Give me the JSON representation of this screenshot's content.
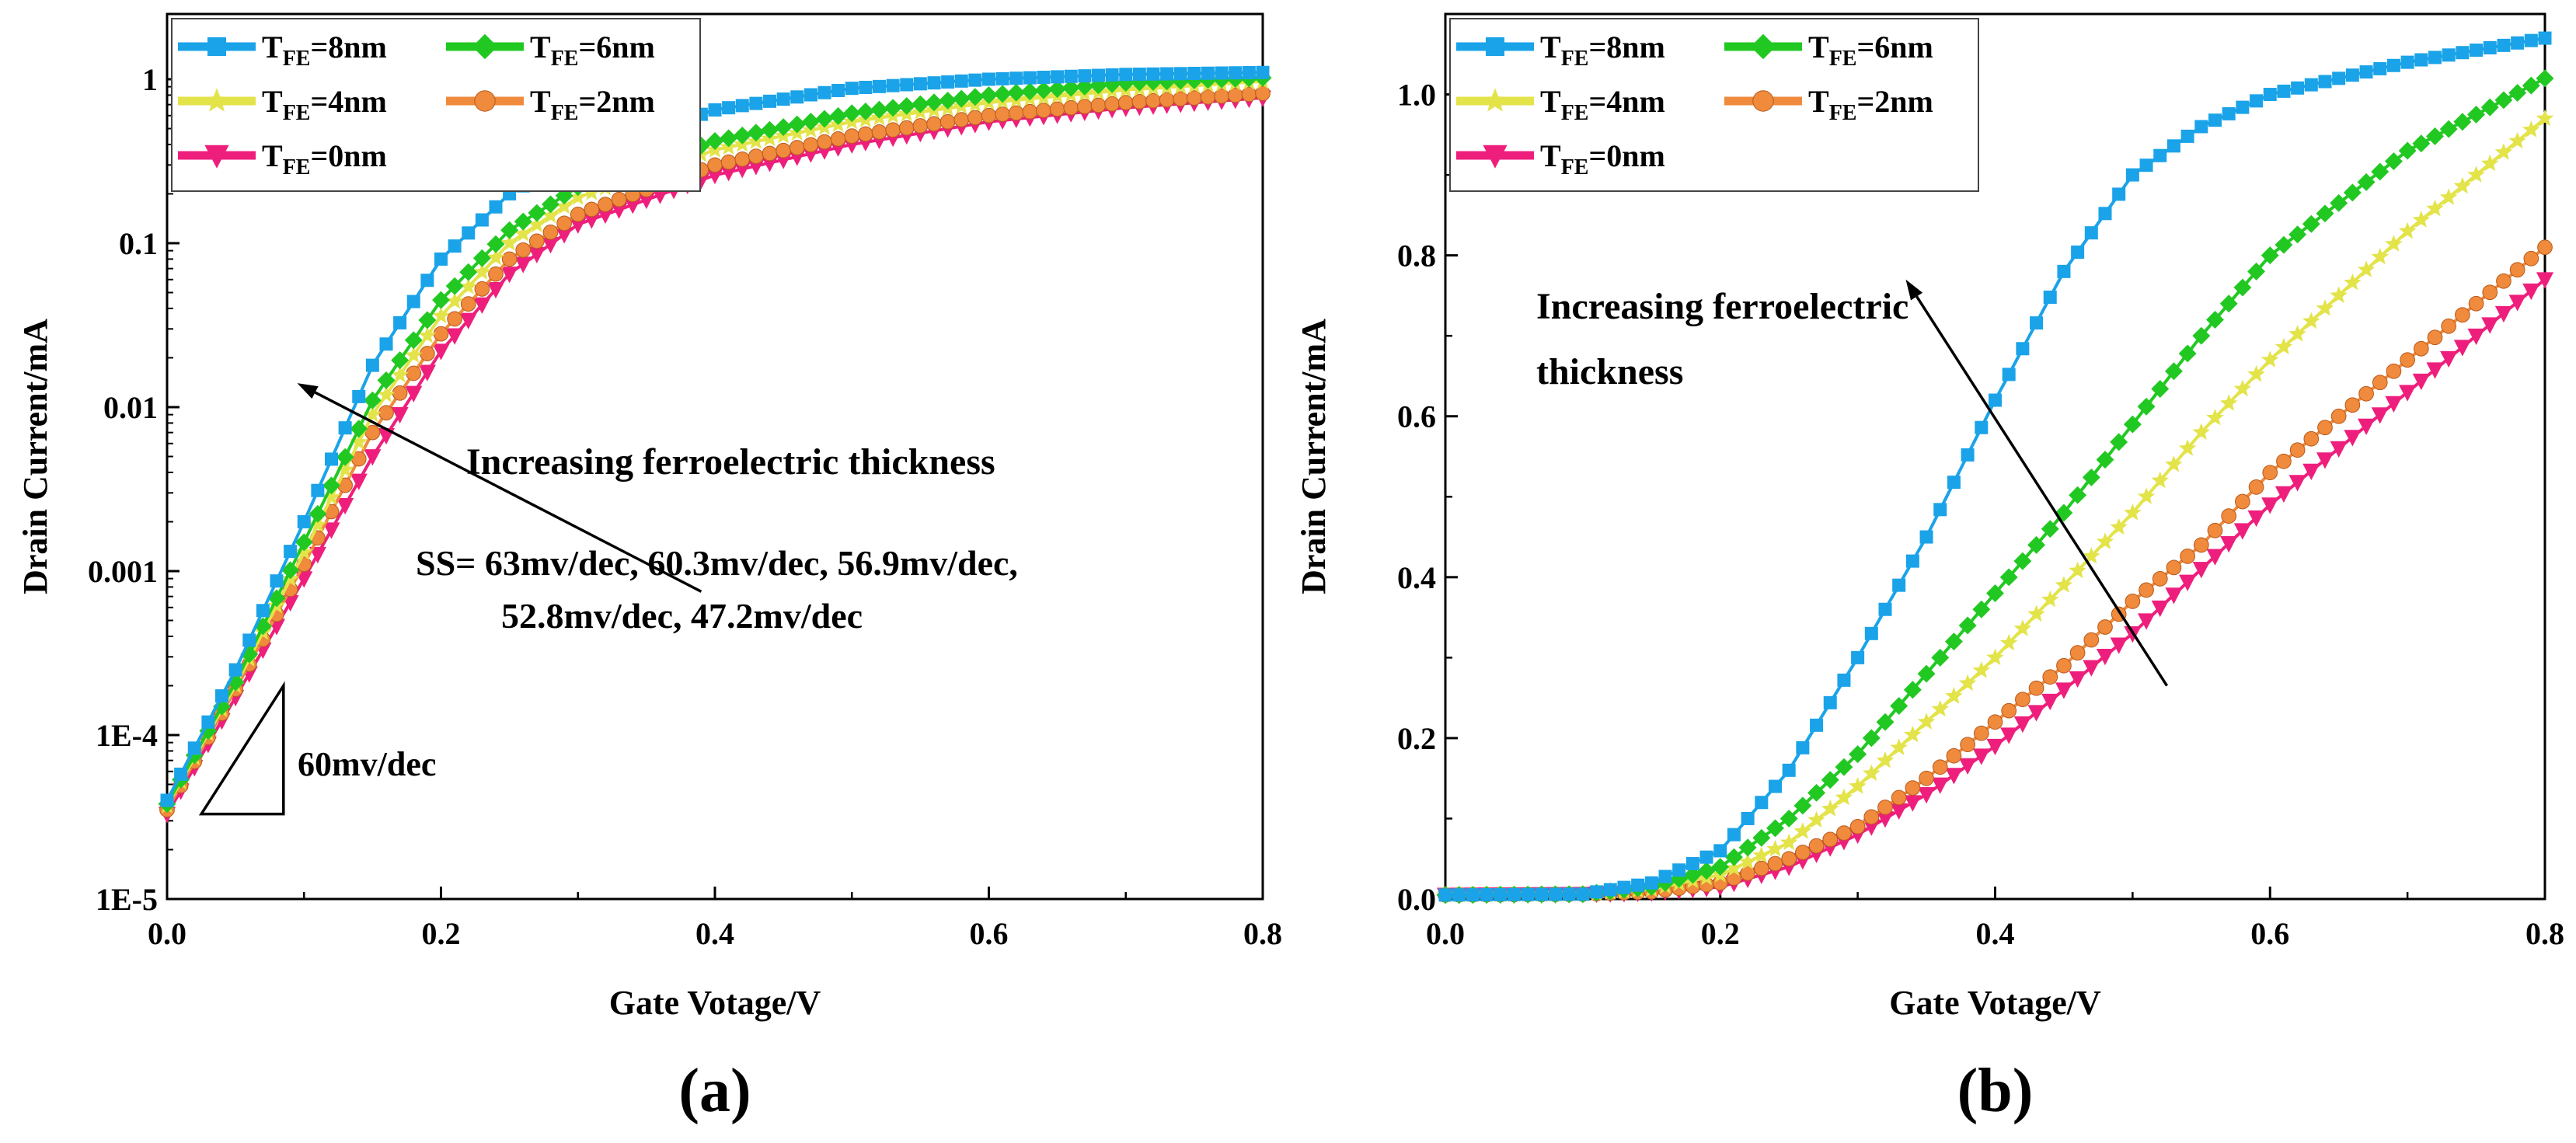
{
  "series_styles": [
    {
      "key": "t8",
      "name": "T_FE=8nm",
      "base": "T",
      "sub": "FE",
      "rest": "=8nm",
      "color": "#1aa3e8",
      "marker": "square"
    },
    {
      "key": "t6",
      "name": "T_FE=6nm",
      "base": "T",
      "sub": "FE",
      "rest": "=6nm",
      "color": "#22c822",
      "marker": "diamond"
    },
    {
      "key": "t4",
      "name": "T_FE=4nm",
      "base": "T",
      "sub": "FE",
      "rest": "=4nm",
      "color": "#e3e34a",
      "marker": "star"
    },
    {
      "key": "t2",
      "name": "T_FE=2nm",
      "base": "T",
      "sub": "FE",
      "rest": "=2nm",
      "color": "#f08a3c",
      "marker": "ball"
    },
    {
      "key": "t0",
      "name": "T_FE=0nm",
      "base": "T",
      "sub": "FE",
      "rest": "=0nm",
      "color": "#ee1f7c",
      "marker": "triangle-down"
    }
  ],
  "chart_data": [
    {
      "id": "a",
      "panel_label": "(a)",
      "type": "line",
      "yscale": "log",
      "xlabel": "Gate Votage/V",
      "ylabel": "Drain Current/mA",
      "xlim": [
        0,
        0.8
      ],
      "ylim": [
        1e-05,
        2.5
      ],
      "xticks": [
        0.0,
        0.2,
        0.4,
        0.6,
        0.8
      ],
      "xtick_labels": [
        "0.0",
        "0.2",
        "0.4",
        "0.6",
        "0.8"
      ],
      "yticks": [
        1e-05,
        0.0001,
        0.001,
        0.01,
        0.1,
        1
      ],
      "ytick_labels": [
        "1E-5",
        "1E-4",
        "0.001",
        "0.01",
        "0.1",
        "1"
      ],
      "legend": "top-left",
      "series": [
        {
          "key": "t8",
          "x": [
            0.0,
            0.05,
            0.1,
            0.15,
            0.2,
            0.25,
            0.3,
            0.4,
            0.5,
            0.6,
            0.7,
            0.8
          ],
          "values": [
            4e-05,
            0.00025,
            0.002,
            0.018,
            0.08,
            0.2,
            0.35,
            0.65,
            0.88,
            1.0,
            1.07,
            1.1
          ]
        },
        {
          "key": "t6",
          "x": [
            0.0,
            0.05,
            0.1,
            0.15,
            0.2,
            0.25,
            0.3,
            0.4,
            0.5,
            0.6,
            0.7,
            0.8
          ],
          "values": [
            3.8e-05,
            0.00021,
            0.0015,
            0.011,
            0.045,
            0.12,
            0.22,
            0.42,
            0.62,
            0.8,
            0.95,
            1.02
          ]
        },
        {
          "key": "t4",
          "x": [
            0.0,
            0.05,
            0.1,
            0.15,
            0.2,
            0.25,
            0.3,
            0.4,
            0.5,
            0.6,
            0.7,
            0.8
          ],
          "values": [
            3.7e-05,
            0.0002,
            0.0013,
            0.009,
            0.036,
            0.1,
            0.19,
            0.37,
            0.55,
            0.72,
            0.86,
            0.97
          ]
        },
        {
          "key": "t2",
          "x": [
            0.0,
            0.05,
            0.1,
            0.15,
            0.2,
            0.25,
            0.3,
            0.4,
            0.5,
            0.6,
            0.7,
            0.8
          ],
          "values": [
            3.5e-05,
            0.00019,
            0.0011,
            0.007,
            0.028,
            0.08,
            0.15,
            0.3,
            0.45,
            0.6,
            0.72,
            0.82
          ]
        },
        {
          "key": "t0",
          "x": [
            0.0,
            0.05,
            0.1,
            0.15,
            0.2,
            0.25,
            0.3,
            0.4,
            0.5,
            0.6,
            0.7,
            0.8
          ],
          "values": [
            3.3e-05,
            0.00017,
            0.0009,
            0.005,
            0.022,
            0.065,
            0.13,
            0.26,
            0.4,
            0.55,
            0.67,
            0.77
          ]
        }
      ],
      "annotations": {
        "arrow_text": "Increasing ferroelectric thickness",
        "ss_line1": "SS= 63mv/dec,  60.3mv/dec,  56.9mv/dec,",
        "ss_line2": "52.8mv/dec,  47.2mv/dec",
        "slope_label": "60mv/dec",
        "arrow_from": [
          0.39,
          0.00075
        ],
        "arrow_to": [
          0.095,
          0.014
        ],
        "triangle": [
          [
            0.025,
            3.3e-05
          ],
          [
            0.085,
            3.3e-05
          ],
          [
            0.085,
            0.0002
          ]
        ]
      }
    },
    {
      "id": "b",
      "panel_label": "(b)",
      "type": "line",
      "yscale": "linear",
      "xlabel": "Gate Votage/V",
      "ylabel": "Drain Current/mA",
      "xlim": [
        0,
        0.8
      ],
      "ylim": [
        0,
        1.1
      ],
      "xticks": [
        0.0,
        0.2,
        0.4,
        0.6,
        0.8
      ],
      "xtick_labels": [
        "0.0",
        "0.2",
        "0.4",
        "0.6",
        "0.8"
      ],
      "yticks": [
        0.0,
        0.2,
        0.4,
        0.6,
        0.8,
        1.0
      ],
      "ytick_labels": [
        "0.0",
        "0.2",
        "0.4",
        "0.6",
        "0.8",
        "1.0"
      ],
      "legend": "top-left",
      "series": [
        {
          "key": "t8",
          "x": [
            0.0,
            0.1,
            0.15,
            0.2,
            0.25,
            0.3,
            0.35,
            0.4,
            0.45,
            0.5,
            0.55,
            0.6,
            0.7,
            0.8
          ],
          "values": [
            0.005,
            0.006,
            0.02,
            0.06,
            0.16,
            0.3,
            0.45,
            0.62,
            0.78,
            0.9,
            0.96,
            1.0,
            1.04,
            1.07
          ]
        },
        {
          "key": "t6",
          "x": [
            0.0,
            0.1,
            0.15,
            0.2,
            0.25,
            0.3,
            0.35,
            0.4,
            0.45,
            0.5,
            0.55,
            0.6,
            0.7,
            0.8
          ],
          "values": [
            0.005,
            0.006,
            0.015,
            0.04,
            0.1,
            0.18,
            0.28,
            0.38,
            0.48,
            0.59,
            0.7,
            0.8,
            0.93,
            1.02
          ]
        },
        {
          "key": "t4",
          "x": [
            0.0,
            0.1,
            0.15,
            0.2,
            0.25,
            0.3,
            0.35,
            0.4,
            0.45,
            0.5,
            0.55,
            0.6,
            0.7,
            0.8
          ],
          "values": [
            0.005,
            0.006,
            0.012,
            0.03,
            0.07,
            0.14,
            0.22,
            0.3,
            0.39,
            0.48,
            0.58,
            0.67,
            0.83,
            0.97
          ]
        },
        {
          "key": "t2",
          "x": [
            0.0,
            0.1,
            0.15,
            0.2,
            0.25,
            0.3,
            0.35,
            0.4,
            0.45,
            0.5,
            0.55,
            0.6,
            0.7,
            0.8
          ],
          "values": [
            0.005,
            0.006,
            0.009,
            0.02,
            0.05,
            0.09,
            0.15,
            0.22,
            0.29,
            0.37,
            0.44,
            0.53,
            0.67,
            0.81
          ]
        },
        {
          "key": "t0",
          "x": [
            0.0,
            0.1,
            0.15,
            0.2,
            0.25,
            0.3,
            0.35,
            0.4,
            0.45,
            0.5,
            0.55,
            0.6,
            0.7,
            0.8
          ],
          "values": [
            0.005,
            0.006,
            0.008,
            0.015,
            0.04,
            0.08,
            0.13,
            0.19,
            0.26,
            0.33,
            0.41,
            0.49,
            0.63,
            0.77
          ]
        }
      ],
      "annotations": {
        "arrow_line1": "Increasing ferroelectric",
        "arrow_line2": "thickness",
        "arrow_from": [
          0.525,
          0.265
        ],
        "arrow_to": [
          0.335,
          0.77
        ]
      }
    }
  ]
}
